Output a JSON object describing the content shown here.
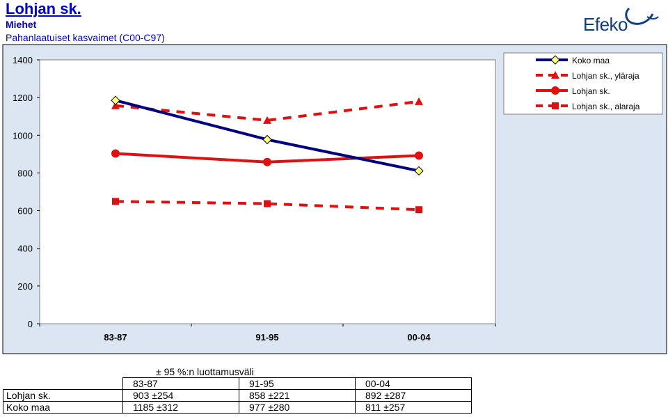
{
  "header": {
    "title": "Lohjan sk.",
    "subtitle": "Miehet",
    "description": "Pahanlaatuiset kasvaimet (C00-C97)",
    "logo_text": "Efeko"
  },
  "colors": {
    "plot_background": "#ffffff",
    "frame_background": "#dce6f2",
    "koko_maa": "#000080",
    "lohja": "#e01010",
    "marker_koko_maa_fill": "#ffff80"
  },
  "chart_data": {
    "type": "line",
    "categories": [
      "83-87",
      "91-95",
      "00-04"
    ],
    "ylim": [
      0,
      1400
    ],
    "yticks": [
      "0",
      "200",
      "400",
      "600",
      "800",
      "1000",
      "1200",
      "1400"
    ],
    "ytick_values": [
      0,
      200,
      400,
      600,
      800,
      1000,
      1200,
      1400
    ],
    "grid": false,
    "legend_position": "top-right",
    "series": [
      {
        "name": "Koko maa",
        "values": [
          1185,
          977,
          811
        ],
        "style": "solid",
        "marker": "diamond",
        "color": "#000080"
      },
      {
        "name": "Lohjan sk., yläraja",
        "values": [
          1157,
          1079,
          1179
        ],
        "style": "dashed",
        "marker": "triangle",
        "color": "#e01010"
      },
      {
        "name": "Lohjan sk.",
        "values": [
          903,
          858,
          892
        ],
        "style": "solid",
        "marker": "circle",
        "color": "#e01010"
      },
      {
        "name": "Lohjan sk., alaraja",
        "values": [
          649,
          637,
          605
        ],
        "style": "dashed",
        "marker": "square",
        "color": "#e01010"
      }
    ]
  },
  "table": {
    "caption": "± 95 %:n luottamusväli",
    "columns": [
      "83-87",
      "91-95",
      "00-04"
    ],
    "rows": [
      {
        "label": "Lohjan sk.",
        "values": [
          "903 ±254",
          "858 ±221",
          "892 ±287"
        ]
      },
      {
        "label": "Koko maa",
        "values": [
          "1185 ±312",
          "977 ±280",
          "811 ±257"
        ]
      }
    ]
  }
}
